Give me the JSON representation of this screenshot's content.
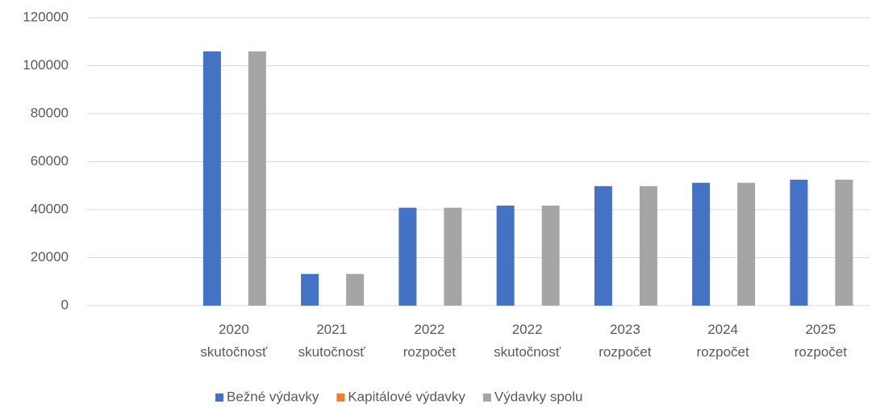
{
  "chart_data": {
    "type": "bar",
    "categories": [
      null,
      "2020 skutočnosť",
      "2021 skutočnosť",
      "2022 rozpočet",
      "2022 skutočnosť",
      "2023 rozpočet",
      "2024 rozpočet",
      "2025 rozpočet"
    ],
    "series": [
      {
        "name": "Bežné výdavky",
        "color": "#4472c4",
        "values": [
          null,
          106000,
          13200,
          40800,
          41700,
          49800,
          51200,
          52500
        ]
      },
      {
        "name": "Kapitálové výdavky",
        "color": "#ed7d31",
        "values": [
          null,
          0,
          0,
          0,
          0,
          0,
          0,
          0
        ]
      },
      {
        "name": "Výdavky spolu",
        "color": "#a5a5a5",
        "values": [
          null,
          106000,
          13200,
          40800,
          41700,
          49800,
          51200,
          52500
        ]
      }
    ],
    "ylim": [
      0,
      120000
    ],
    "yticks": [
      0,
      20000,
      40000,
      60000,
      80000,
      100000,
      120000
    ],
    "grid": true,
    "legend": "bottom"
  }
}
